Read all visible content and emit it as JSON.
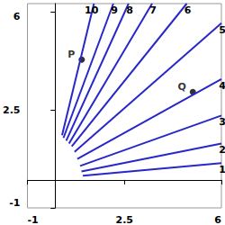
{
  "chart_data": {
    "type": "line",
    "xlim": [
      -1,
      6
    ],
    "ylim": [
      -1,
      6.3
    ],
    "xticks": [
      -1,
      2.5,
      6
    ],
    "yticks": [
      -1,
      2.5,
      6
    ],
    "grid": false,
    "color": "#2828c8",
    "series": [
      {
        "name": "1",
        "x": [
          1.0,
          6
        ],
        "values": [
          0.15,
          0.6
        ]
      },
      {
        "name": "2",
        "x": [
          0.95,
          6
        ],
        "values": [
          0.3,
          1.3
        ]
      },
      {
        "name": "3",
        "x": [
          0.9,
          6
        ],
        "values": [
          0.5,
          2.3
        ]
      },
      {
        "name": "4",
        "x": [
          0.8,
          6
        ],
        "values": [
          0.75,
          3.6
        ]
      },
      {
        "name": "5",
        "x": [
          0.7,
          6
        ],
        "values": [
          1.0,
          5.6
        ]
      },
      {
        "name": "6",
        "x": [
          0.6,
          4.75
        ],
        "values": [
          1.2,
          6.3
        ]
      },
      {
        "name": "7",
        "x": [
          0.5,
          3.5
        ],
        "values": [
          1.3,
          6.3
        ]
      },
      {
        "name": "8",
        "x": [
          0.4,
          2.65
        ],
        "values": [
          1.4,
          6.3
        ]
      },
      {
        "name": "9",
        "x": [
          0.3,
          2.1
        ],
        "values": [
          1.5,
          6.3
        ]
      },
      {
        "name": "10",
        "x": [
          0.25,
          1.4
        ],
        "values": [
          1.6,
          6.3
        ]
      }
    ],
    "points": [
      {
        "name": "P",
        "x": 0.96,
        "y": 4.3,
        "color": "#000000"
      },
      {
        "name": "Q",
        "x": 4.97,
        "y": 3.14,
        "color": "#000000"
      }
    ]
  }
}
